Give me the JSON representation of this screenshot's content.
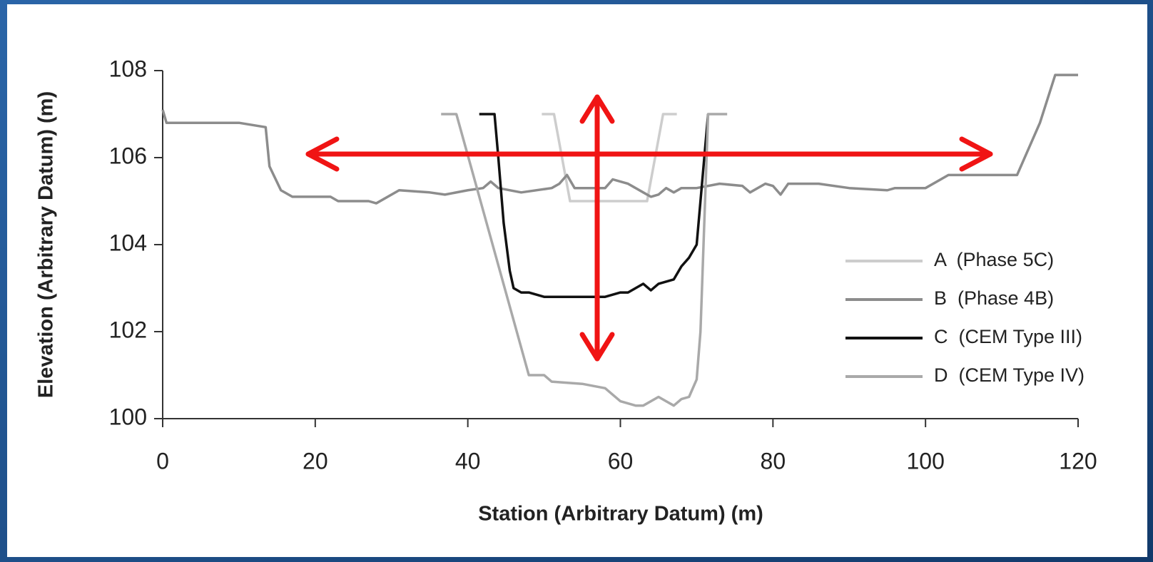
{
  "chart_data": {
    "type": "line",
    "xlabel": "Station (Arbitrary Datum) (m)",
    "ylabel": "Elevation (Arbitrary Datum) (m)",
    "xlim": [
      0,
      120
    ],
    "xticks": [
      0,
      20,
      40,
      60,
      80,
      100,
      120
    ],
    "ylim": [
      100,
      108
    ],
    "yticks": [
      100,
      102,
      104,
      106,
      108
    ],
    "grid": false,
    "legend": "lower right",
    "series": [
      {
        "name": "A  (Phase 5C)",
        "color": "#cdcdcd",
        "x": [
          49.7,
          51.3,
          53.4,
          63.5,
          65.6,
          67.4
        ],
        "values": [
          107,
          107,
          105,
          105,
          107,
          107
        ]
      },
      {
        "name": "B  (Phase 4B)",
        "color": "#8c8c8c",
        "x": [
          0,
          0.5,
          10,
          13.5,
          14,
          15.5,
          17,
          22,
          23,
          27,
          28,
          31,
          35,
          37,
          40,
          42,
          43,
          44,
          47,
          51,
          52,
          53,
          54,
          58,
          59,
          61,
          63,
          64,
          65,
          66,
          67,
          68,
          70,
          73,
          76,
          77,
          79,
          80,
          81,
          82,
          86,
          90,
          95,
          96,
          100,
          103,
          108,
          112,
          115,
          117,
          120
        ],
        "values": [
          107.1,
          106.8,
          106.8,
          106.7,
          105.8,
          105.25,
          105.1,
          105.1,
          105,
          105,
          104.95,
          105.25,
          105.2,
          105.15,
          105.25,
          105.3,
          105.45,
          105.3,
          105.2,
          105.3,
          105.4,
          105.6,
          105.3,
          105.3,
          105.5,
          105.4,
          105.2,
          105.1,
          105.15,
          105.3,
          105.2,
          105.3,
          105.3,
          105.4,
          105.35,
          105.2,
          105.4,
          105.35,
          105.15,
          105.4,
          105.4,
          105.3,
          105.25,
          105.3,
          105.3,
          105.6,
          105.6,
          105.6,
          106.8,
          107.9,
          107.9
        ]
      },
      {
        "name": "C  (CEM Type III)",
        "color": "#111111",
        "x": [
          41.5,
          43.5,
          44,
          44.7,
          45.5,
          46,
          47,
          48,
          50,
          58,
          60,
          61,
          62,
          63,
          64,
          65,
          67,
          68,
          69,
          70,
          71,
          71.5
        ],
        "values": [
          107,
          107,
          106,
          104.5,
          103.4,
          103,
          102.9,
          102.9,
          102.8,
          102.8,
          102.9,
          102.9,
          103,
          103.1,
          102.95,
          103.1,
          103.2,
          103.5,
          103.7,
          104,
          106,
          107
        ]
      },
      {
        "name": "D  (CEM Type IV)",
        "color": "#a9a9a9",
        "x": [
          36.5,
          38.5,
          48,
          50,
          51,
          55,
          58,
          60,
          62,
          63,
          65,
          66,
          67,
          68,
          69,
          70,
          70.5,
          71.5,
          74
        ],
        "values": [
          107,
          107,
          101,
          101,
          100.85,
          100.8,
          100.7,
          100.4,
          100.3,
          100.3,
          100.5,
          100.4,
          100.3,
          100.45,
          100.5,
          100.9,
          102,
          107,
          107
        ]
      }
    ]
  }
}
